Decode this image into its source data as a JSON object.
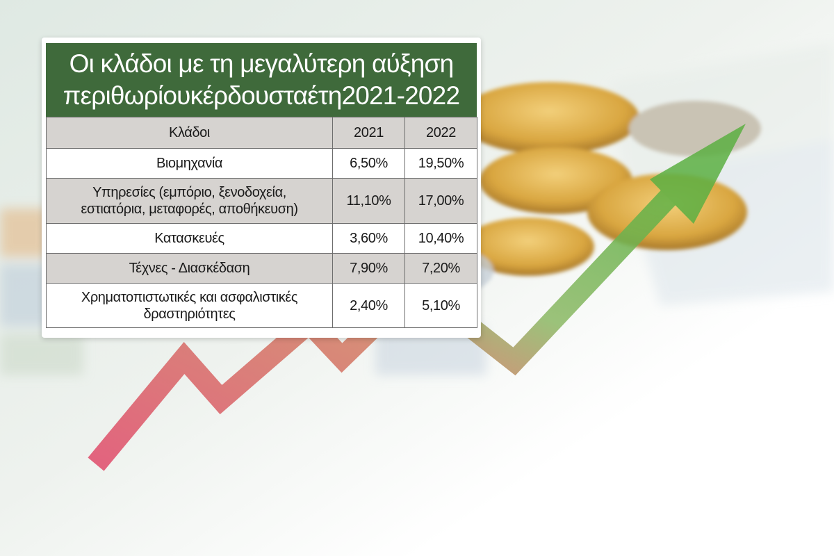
{
  "chart_data": {
    "type": "table",
    "title": "Οι κλάδοι με τη μεγαλύτερη αύξηση περιθωρίουκέρδουσταέτη2021-2022",
    "title_lines": [
      "Οι κλάδοι με τη μεγαλύτερη αύξηση",
      "περιθωρίουκέρδουσταέτη2021-2022"
    ],
    "columns": [
      "Κλάδοι",
      "2021",
      "2022"
    ],
    "rows": [
      {
        "sector_lines": [
          "Βιομηχανία"
        ],
        "v2021": "6,50%",
        "v2022": "19,50%"
      },
      {
        "sector_lines": [
          "Υπηρεσίες (εμπόριο, ξενοδοχεία,",
          "εστιατόρια, μεταφορές, αποθήκευση)"
        ],
        "v2021": "11,10%",
        "v2022": "17,00%"
      },
      {
        "sector_lines": [
          "Κατασκευές"
        ],
        "v2021": "3,60%",
        "v2022": "10,40%"
      },
      {
        "sector_lines": [
          "Τέχνες - Διασκέδαση"
        ],
        "v2021": "7,90%",
        "v2022": "7,20%"
      },
      {
        "sector_lines": [
          "Χρηματοπιστωτικές και ασφαλιστικές",
          "δραστηριότητες"
        ],
        "v2021": "2,40%",
        "v2022": "5,10%"
      }
    ],
    "colors": {
      "title_bg": "#3f6a3b",
      "header_bg": "#d6d3d0",
      "stripe_bg": "#d6d3d0",
      "arrow_start": "#e04a6a",
      "arrow_end": "#5cb043",
      "coin": "#d9a640"
    }
  }
}
